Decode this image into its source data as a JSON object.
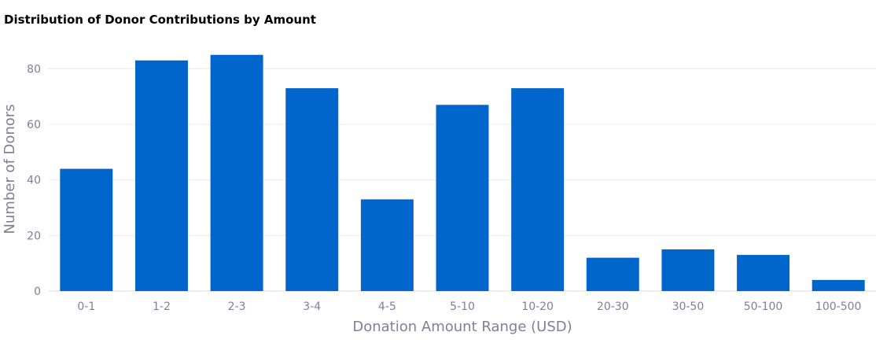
{
  "chart_data": {
    "type": "bar",
    "title": "Distribution of Donor Contributions by Amount",
    "xlabel": "Donation Amount Range (USD)",
    "ylabel": "Number of Donors",
    "categories": [
      "0-1",
      "1-2",
      "2-3",
      "3-4",
      "4-5",
      "5-10",
      "10-20",
      "20-30",
      "30-50",
      "50-100",
      "100-500"
    ],
    "values": [
      44,
      83,
      85,
      73,
      33,
      67,
      73,
      12,
      15,
      13,
      4
    ],
    "ylim": [
      0,
      92
    ],
    "yticks": [
      0,
      20,
      40,
      60,
      80
    ],
    "grid": true,
    "bar_color": "#0066cc"
  }
}
